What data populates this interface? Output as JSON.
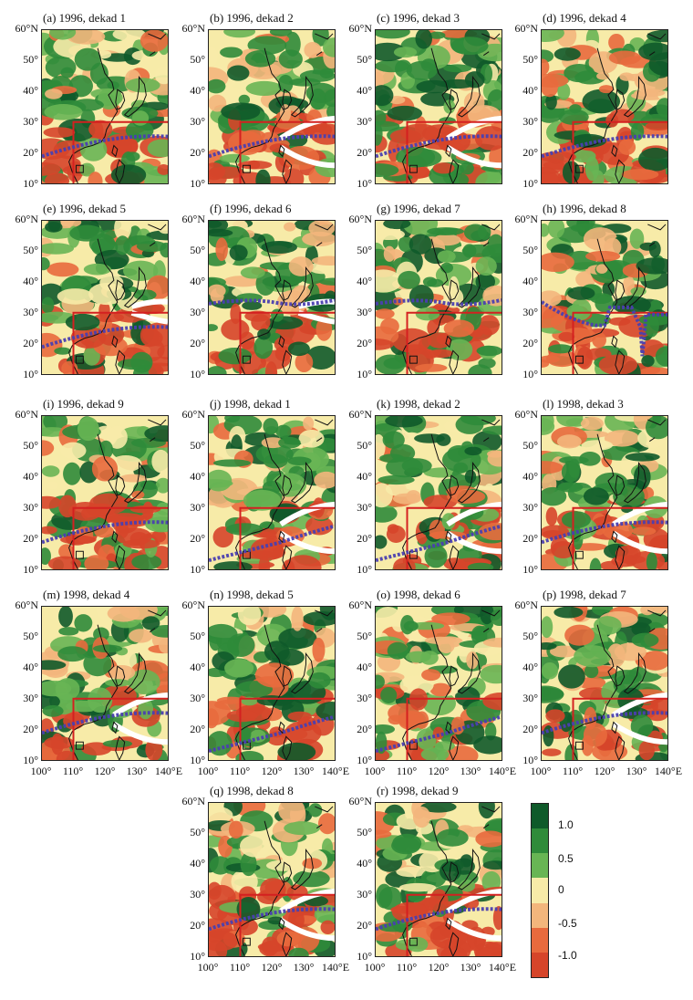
{
  "figure": {
    "panels": [
      {
        "id": "a",
        "title": "(a) 1996, dekad 1",
        "front": "mid",
        "ridge": "none"
      },
      {
        "id": "b",
        "title": "(b) 1996, dekad 2",
        "front": "mid",
        "ridge": "band"
      },
      {
        "id": "c",
        "title": "(c) 1996, dekad 3",
        "front": "mid",
        "ridge": "band"
      },
      {
        "id": "d",
        "title": "(d) 1996, dekad 4",
        "front": "mid",
        "ridge": "none"
      },
      {
        "id": "e",
        "title": "(e) 1996, dekad 5",
        "front": "mid",
        "ridge": "short"
      },
      {
        "id": "f",
        "title": "(f) 1996, dekad 6",
        "front": "high",
        "ridge": "short"
      },
      {
        "id": "g",
        "title": "(g) 1996, dekad 7",
        "front": "high",
        "ridge": "none"
      },
      {
        "id": "h",
        "title": "(h) 1996, dekad 8",
        "front": "loop",
        "ridge": "none"
      },
      {
        "id": "i",
        "title": "(i) 1996, dekad 9",
        "front": "mid",
        "ridge": "none"
      },
      {
        "id": "j",
        "title": "(j) 1998, dekad 1",
        "front": "low",
        "ridge": "band"
      },
      {
        "id": "k",
        "title": "(k) 1998, dekad 2",
        "front": "low",
        "ridge": "band"
      },
      {
        "id": "l",
        "title": "(l) 1998, dekad 3",
        "front": "mid",
        "ridge": "band"
      },
      {
        "id": "m",
        "title": "(m) 1998, dekad 4",
        "front": "mid",
        "ridge": "band"
      },
      {
        "id": "n",
        "title": "(n) 1998, dekad 5",
        "front": "low",
        "ridge": "none"
      },
      {
        "id": "o",
        "title": "(o) 1998, dekad 6",
        "front": "low",
        "ridge": "none"
      },
      {
        "id": "p",
        "title": "(p) 1998, dekad 7",
        "front": "mid",
        "ridge": "band"
      },
      {
        "id": "q",
        "title": "(q) 1998, dekad 8",
        "front": "mid",
        "ridge": "band"
      },
      {
        "id": "r",
        "title": "(r) 1998, dekad 9",
        "front": "mid",
        "ridge": "band"
      }
    ],
    "y_ticks": [
      "60°N",
      "50°",
      "40°",
      "30°",
      "20°",
      "10°"
    ],
    "x_ticks": [
      "100°",
      "110°",
      "120°",
      "130°",
      "140°E"
    ],
    "lat_range": [
      10,
      60
    ],
    "lon_range": [
      100,
      140
    ],
    "box": {
      "lon": [
        110,
        140
      ],
      "lat": [
        10,
        30
      ]
    }
  },
  "legend": {
    "labels": [
      "1.0",
      "0.5",
      "0",
      "-0.5",
      "-1.0"
    ],
    "colors": [
      "#0f5a2a",
      "#2f8b3a",
      "#68b554",
      "#f7eba8",
      "#f3b67c",
      "#e86a3d",
      "#d6452a"
    ]
  }
}
